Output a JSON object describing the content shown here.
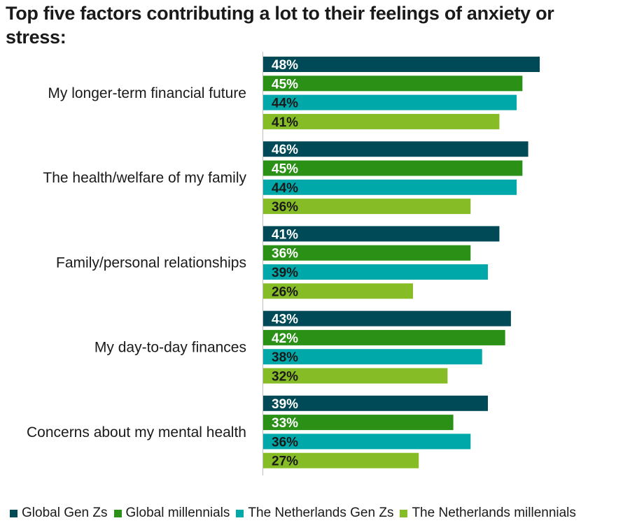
{
  "chart_data": {
    "type": "bar",
    "orientation": "horizontal",
    "title": "Top five factors contributing a lot to their feelings of anxiety or stress:",
    "categories": [
      "My longer-term financial future",
      "The health/welfare of my family",
      "Family/personal relationships",
      "My day-to-day finances",
      "Concerns about my mental health"
    ],
    "series": [
      {
        "name": "Global Gen Zs",
        "color": "#004A57",
        "label_color": "#ffffff",
        "values": [
          48,
          46,
          41,
          43,
          39
        ]
      },
      {
        "name": "Global millennials",
        "color": "#2A9116",
        "label_color": "#ffffff",
        "values": [
          45,
          45,
          36,
          42,
          33
        ]
      },
      {
        "name": "The Netherlands Gen Zs",
        "color": "#00A8AA",
        "label_color": "#1a1a1a",
        "values": [
          44,
          44,
          39,
          38,
          36
        ]
      },
      {
        "name": "The Netherlands millennials",
        "color": "#86BC25",
        "label_color": "#1a1a1a",
        "values": [
          41,
          36,
          26,
          32,
          27
        ]
      }
    ],
    "value_suffix": "%",
    "xlim": [
      0,
      50
    ],
    "grid": false,
    "legend_position": "bottom"
  }
}
